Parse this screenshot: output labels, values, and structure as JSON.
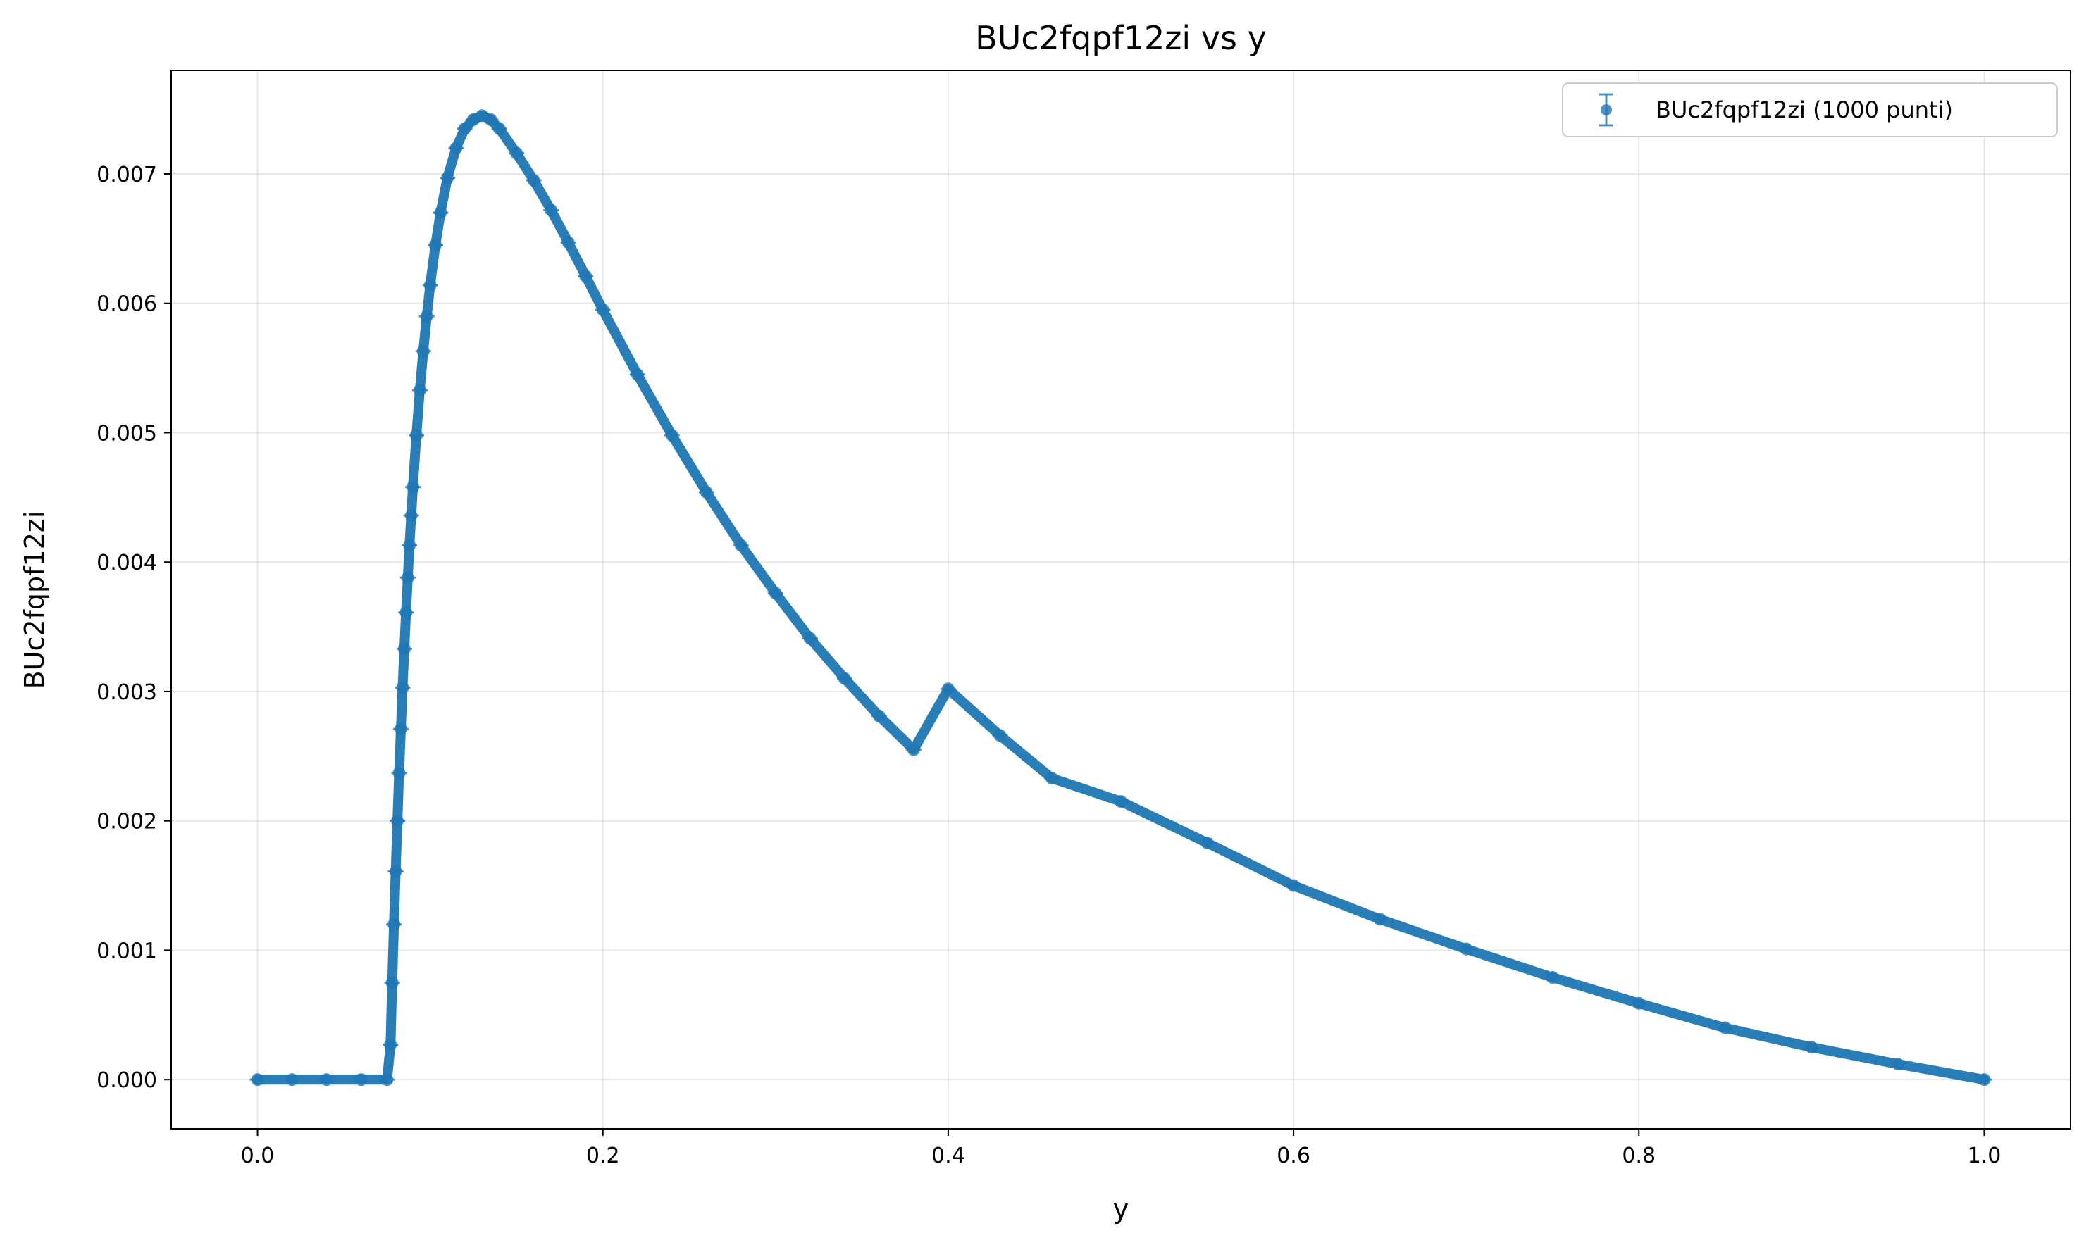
{
  "chart_data": {
    "type": "scatter",
    "title": "BUc2fqpf12zi vs y",
    "xlabel": "y",
    "ylabel": "BUc2fqpf12zi",
    "xlim": [
      -0.05,
      1.05
    ],
    "ylim": [
      -0.00038,
      0.0078
    ],
    "xticks": [
      "0.0",
      "0.2",
      "0.4",
      "0.6",
      "0.8",
      "1.0"
    ],
    "xtick_values": [
      0.0,
      0.2,
      0.4,
      0.6,
      0.8,
      1.0
    ],
    "yticks": [
      "0.000",
      "0.001",
      "0.002",
      "0.003",
      "0.004",
      "0.005",
      "0.006",
      "0.007"
    ],
    "ytick_values": [
      0.0,
      0.001,
      0.002,
      0.003,
      0.004,
      0.005,
      0.006,
      0.007
    ],
    "grid": true,
    "legend_position": "top-right",
    "color": "#1f77b4",
    "series": [
      {
        "name": "BUc2fqpf12zi (1000 punti)",
        "marker": "circle-with-errorbars",
        "x": [
          0.0,
          0.02,
          0.04,
          0.06,
          0.075,
          0.077,
          0.078,
          0.079,
          0.08,
          0.081,
          0.082,
          0.083,
          0.084,
          0.085,
          0.086,
          0.087,
          0.088,
          0.089,
          0.09,
          0.092,
          0.094,
          0.096,
          0.098,
          0.1,
          0.103,
          0.106,
          0.11,
          0.115,
          0.12,
          0.125,
          0.13,
          0.135,
          0.14,
          0.15,
          0.16,
          0.17,
          0.18,
          0.19,
          0.2,
          0.22,
          0.24,
          0.26,
          0.28,
          0.3,
          0.32,
          0.34,
          0.36,
          0.38,
          0.4,
          0.43,
          0.46,
          0.5,
          0.55,
          0.6,
          0.65,
          0.7,
          0.75,
          0.8,
          0.85,
          0.9,
          0.95,
          1.0
        ],
        "y": [
          0.0,
          0.0,
          0.0,
          0.0,
          0.0,
          0.00027,
          0.00075,
          0.0012,
          0.00161,
          0.002,
          0.00237,
          0.00271,
          0.00303,
          0.00333,
          0.00361,
          0.00388,
          0.00413,
          0.00436,
          0.00458,
          0.00498,
          0.00533,
          0.00563,
          0.0059,
          0.00614,
          0.00645,
          0.0067,
          0.00697,
          0.0072,
          0.00735,
          0.00742,
          0.00745,
          0.00742,
          0.00735,
          0.00716,
          0.00695,
          0.00672,
          0.00647,
          0.00621,
          0.00595,
          0.00545,
          0.00498,
          0.00454,
          0.00413,
          0.00376,
          0.00341,
          0.0031,
          0.00281,
          0.00255,
          0.00302,
          0.00266,
          0.00233,
          0.00215,
          0.00183,
          0.0015,
          0.00124,
          0.00101,
          0.00079,
          0.00059,
          0.0004,
          0.00025,
          0.00012,
          0.0
        ]
      }
    ]
  }
}
